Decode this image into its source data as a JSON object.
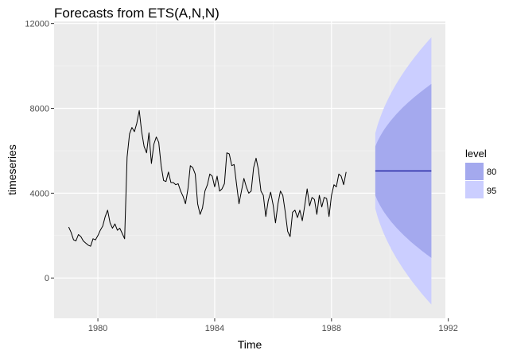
{
  "chart_data": {
    "type": "line",
    "title": "Forecasts from ETS(A,N,N)",
    "xlabel": "Time",
    "ylabel": "timeseries",
    "xlim": [
      1978.5,
      1991.9
    ],
    "ylim": [
      -1900,
      12100
    ],
    "x_ticks": [
      1980,
      1984,
      1988,
      1992
    ],
    "x_tick_labels": [
      "1980",
      "1984",
      "1988",
      "1992"
    ],
    "y_ticks": [
      0,
      4000,
      8000,
      12000
    ],
    "y_tick_labels": [
      "0",
      "4000",
      "8000",
      "12000"
    ],
    "grid": true,
    "legend": {
      "title": "level",
      "placement": "right",
      "entries": [
        {
          "label": "80",
          "color": "#a4a9ee"
        },
        {
          "label": "95",
          "color": "#cbceff"
        }
      ]
    },
    "colors": {
      "panel": "#ebebeb",
      "grid_major": "#ffffff",
      "series": "#000000",
      "forecast_line": "#00008b",
      "band_80": "#a4a9ee",
      "band_95": "#cbceff"
    },
    "series": [
      {
        "role": "observed",
        "start": 1979.0,
        "frequency": 12,
        "values": [
          2400,
          2150,
          1800,
          1750,
          2050,
          1950,
          1750,
          1650,
          1550,
          1500,
          1850,
          1800,
          2000,
          2250,
          2450,
          2900,
          3200,
          2600,
          2350,
          2550,
          2250,
          2350,
          2100,
          1850,
          5700,
          6800,
          7100,
          6900,
          7300,
          7900,
          6900,
          6200,
          5900,
          6850,
          5400,
          6300,
          6650,
          6400,
          5300,
          4600,
          4550,
          5000,
          4500,
          4500,
          4400,
          4450,
          4100,
          3850,
          3500,
          4200,
          5300,
          5200,
          4900,
          3500,
          3000,
          3300,
          4100,
          4400,
          4900,
          4800,
          4300,
          4800,
          4100,
          4200,
          4450,
          5900,
          5850,
          5300,
          5350,
          4400,
          3500,
          4100,
          4700,
          4300,
          4000,
          4100,
          5200,
          5650,
          5100,
          4100,
          3900,
          2900,
          3650,
          4050,
          3450,
          2600,
          3500,
          4100,
          3900,
          3100,
          2200,
          1950,
          3100,
          3200,
          2850,
          3200,
          2700,
          3400,
          4200,
          3400,
          3800,
          3700,
          3000,
          3900,
          3350,
          3800,
          3750,
          2900,
          3900,
          4400,
          4300,
          4900,
          4800,
          4400,
          5000
        ]
      },
      {
        "role": "forecast",
        "x_start": 1989.5,
        "x_end": 1991.42,
        "point_forecast": 5050,
        "lo80_end": 950,
        "hi80_end": 9150,
        "lo95_end": -1250,
        "hi95_end": 11350
      }
    ]
  }
}
